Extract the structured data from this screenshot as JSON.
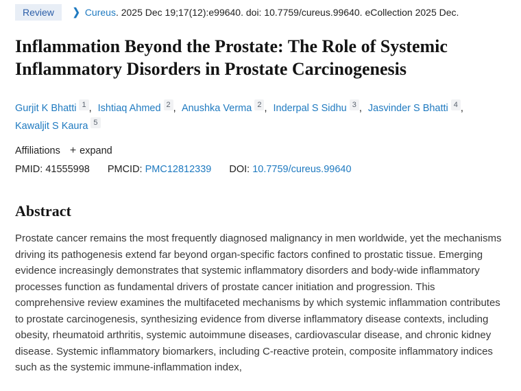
{
  "colors": {
    "link_blue": "#1f7ac0",
    "badge_background": "#e8eef6",
    "badge_text": "#2b5ea8",
    "affil_badge_background": "#f1f2f4",
    "body_text": "#383838",
    "title_text": "#141414"
  },
  "header": {
    "publication_type_badge": "Review",
    "chevron_icon": "❯",
    "journal_link": "Cureus",
    "citation_rest": ". 2025 Dec 19;17(12):e99640. doi: 10.7759/cureus.99640. eCollection 2025 Dec."
  },
  "title": "Inflammation Beyond the Prostate: The Role of Systemic Inflammatory Disorders in Prostate Carcinogenesis",
  "authors_meta": {
    "separator": ","
  },
  "authors": [
    {
      "name": "Gurjit K Bhatti",
      "sup": "1"
    },
    {
      "name": "Ishtiaq Ahmed",
      "sup": "2"
    },
    {
      "name": "Anushka Verma",
      "sup": "2"
    },
    {
      "name": "Inderpal S Sidhu",
      "sup": "3"
    },
    {
      "name": "Jasvinder S Bhatti",
      "sup": "4"
    },
    {
      "name": "Kawaljit S Kaura",
      "sup": "5"
    }
  ],
  "affiliations": {
    "label": "Affiliations",
    "expand_icon": "+",
    "expand_label": "expand"
  },
  "identifiers": {
    "pmid_label": "PMID:",
    "pmid_value": "41555998",
    "pmcid_label": "PMCID:",
    "pmcid_value": "PMC12812339",
    "doi_label": "DOI:",
    "doi_value": "10.7759/cureus.99640"
  },
  "abstract": {
    "heading": "Abstract",
    "text": "Prostate cancer remains the most frequently diagnosed malignancy in men worldwide, yet the mechanisms driving its pathogenesis extend far beyond organ-specific factors confined to prostatic tissue. Emerging evidence increasingly demonstrates that systemic inflammatory disorders and body-wide inflammatory processes function as fundamental drivers of prostate cancer initiation and progression. This comprehensive review examines the multifaceted mechanisms by which systemic inflammation contributes to prostate carcinogenesis, synthesizing evidence from diverse inflammatory disease contexts, including obesity, rheumatoid arthritis, systemic autoimmune diseases, cardiovascular disease, and chronic kidney disease. Systemic inflammatory biomarkers, including C-reactive protein, composite inflammatory indices such as the systemic immune-inflammation index,"
  }
}
